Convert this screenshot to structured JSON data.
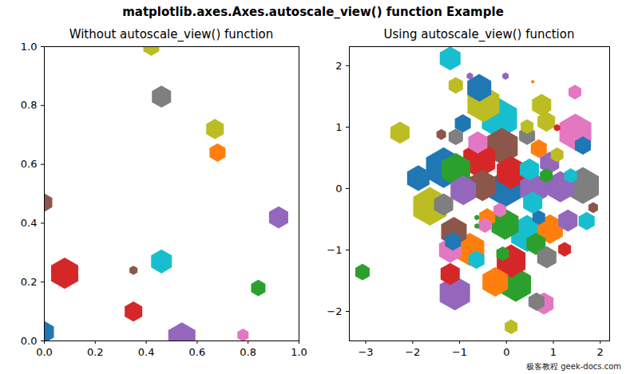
{
  "title": "matplotlib.axes.Axes.autoscale_view() function Example",
  "watermark": "极客教程 geek-docs.com",
  "chart_data": [
    {
      "type": "scatter",
      "title": "Without autoscale_view() function",
      "marker": "hexagon",
      "x": [
        0.42,
        0.46,
        0.67,
        0.68,
        0.0,
        0.92,
        0.08,
        0.46,
        0.35,
        0.84,
        0.35,
        0.0,
        0.54,
        0.78
      ],
      "y": [
        1.0,
        0.83,
        0.72,
        0.64,
        0.47,
        0.42,
        0.23,
        0.27,
        0.24,
        0.18,
        0.1,
        0.03,
        0.01,
        0.02
      ],
      "sizes": [
        207,
        298,
        250,
        207,
        207,
        298,
        597,
        349,
        52,
        167,
        250,
        298,
        597,
        101
      ],
      "colors": [
        "#bcbd22",
        "#7f7f7f",
        "#bcbd22",
        "#ff7f0e",
        "#8c564b",
        "#9467bd",
        "#d62728",
        "#17becf",
        "#8c564b",
        "#2ca02c",
        "#d62728",
        "#1f77b4",
        "#9467bd",
        "#e377c2"
      ],
      "xlim": [
        0,
        1
      ],
      "ylim": [
        0,
        1
      ],
      "xticks": [
        {
          "value": 0,
          "label": "0.0"
        },
        0.2,
        0.4,
        0.6,
        0.8,
        {
          "value": 1,
          "label": "1.0"
        }
      ],
      "yticks": [
        {
          "value": 0,
          "label": "0.0"
        },
        0.2,
        0.4,
        0.6,
        0.8,
        {
          "value": 1,
          "label": "1.0"
        }
      ]
    },
    {
      "type": "scatter",
      "title": "Using autoscale_view() function",
      "marker": "hexagon",
      "x": [
        -1.2,
        -0.78,
        -0.02,
        0.56,
        -0.58,
        -1.08,
        1.46,
        -0.49,
        -0.15,
        0.75,
        0.85,
        0.44,
        1.08,
        1.47,
        1.63,
        -0.93,
        -1.08,
        -1.39,
        -2.27,
        -0.61,
        0.44,
        0.69,
        1.08,
        -0.1,
        0.92,
        -1.34,
        -0.58,
        -1.08,
        0.1,
        -1.88,
        0.49,
        0.85,
        1.37,
        1.63,
        1.15,
        0.58,
        -0.02,
        -0.51,
        -0.92,
        -1.34,
        -1.63,
        0.56,
        1.85,
        -0.14,
        -0.41,
        -0.46,
        -0.63,
        -0.63,
        1.31,
        0.69,
        1.71,
        -0.03,
        -1.12,
        0.44,
        0.93,
        -1.14,
        0.63,
        -1.2,
        -0.78,
        -0.64,
        0.86,
        1.24,
        -0.08,
        0.1,
        -3.07,
        -1.2,
        -0.24,
        0.2,
        -1.1,
        0.8,
        0.64,
        0.1
      ],
      "y": [
        2.12,
        1.83,
        1.83,
        1.74,
        1.64,
        1.68,
        1.57,
        1.38,
        1.14,
        1.36,
        1.09,
        1.01,
        0.99,
        0.92,
        0.7,
        1.06,
        0.84,
        0.88,
        0.91,
        0.75,
        0.86,
        0.65,
        0.55,
        0.69,
        0.42,
        0.34,
        0.47,
        0.31,
        0.26,
        0.17,
        0.31,
        0.21,
        0.21,
        0.05,
        0.03,
        0.0,
        0.0,
        0.05,
        -0.03,
        -0.26,
        -0.29,
        -0.23,
        -0.31,
        -0.35,
        -0.47,
        -0.6,
        -0.47,
        -0.61,
        -0.52,
        -0.47,
        -0.53,
        -0.58,
        -0.7,
        -0.73,
        -0.66,
        -0.86,
        -0.9,
        -1.0,
        -0.99,
        -1.16,
        -1.12,
        -0.99,
        -1.06,
        -1.18,
        -1.36,
        -1.39,
        -1.52,
        -1.56,
        -1.7,
        -1.87,
        -1.84,
        -2.25
      ],
      "sizes": [
        349,
        33,
        33,
        8,
        465,
        167,
        132,
        826,
        1000,
        298,
        250,
        132,
        33,
        826,
        207,
        207,
        167,
        74,
        298,
        298,
        207,
        207,
        132,
        826,
        298,
        1000,
        826,
        669,
        669,
        405,
        298,
        132,
        132,
        826,
        597,
        597,
        826,
        597,
        529,
        298,
        911,
        298,
        74,
        132,
        207,
        132,
        19,
        19,
        298,
        132,
        207,
        597,
        529,
        826,
        529,
        207,
        298,
        405,
        669,
        207,
        298,
        132,
        132,
        669,
        167,
        298,
        529,
        746,
        746,
        298,
        207,
        132
      ],
      "colors": [
        "#17becf",
        "#9467bd",
        "#9467bd",
        "#ff7f0e",
        "#1f77b4",
        "#bcbd22",
        "#e377c2",
        "#bcbd22",
        "#17becf",
        "#bcbd22",
        "#bcbd22",
        "#bcbd22",
        "#d62728",
        "#e377c2",
        "#1f77b4",
        "#1f77b4",
        "#7f7f7f",
        "#8c564b",
        "#bcbd22",
        "#e377c2",
        "#7f7f7f",
        "#ff7f0e",
        "#bcbd22",
        "#8c564b",
        "#9467bd",
        "#1f77b4",
        "#d62728",
        "#2ca02c",
        "#d62728",
        "#1f77b4",
        "#17becf",
        "#2ca02c",
        "#17becf",
        "#7f7f7f",
        "#9467bd",
        "#9467bd",
        "#1f77b4",
        "#8c564b",
        "#9467bd",
        "#7f7f7f",
        "#bcbd22",
        "#17becf",
        "#8c564b",
        "#e377c2",
        "#ff7f0e",
        "#e377c2",
        "#2ca02c",
        "#2ca02c",
        "#9467bd",
        "#1f77b4",
        "#17becf",
        "#2ca02c",
        "#8c564b",
        "#17becf",
        "#ff7f0e",
        "#1f77b4",
        "#2ca02c",
        "#e377c2",
        "#ff7f0e",
        "#17becf",
        "#7f7f7f",
        "#d62728",
        "#2ca02c",
        "#d62728",
        "#2ca02c",
        "#d62728",
        "#ff7f0e",
        "#2ca02c",
        "#9467bd",
        "#e377c2",
        "#7f7f7f",
        "#bcbd22"
      ],
      "xlim": [
        -3.35,
        2.2
      ],
      "ylim": [
        -2.48,
        2.31
      ],
      "xticks": [
        {
          "value": -3,
          "label": "−3"
        },
        {
          "value": -2,
          "label": "−2"
        },
        {
          "value": -1,
          "label": "−1"
        },
        0,
        1,
        2
      ],
      "yticks": [
        {
          "value": -2,
          "label": "−2"
        },
        {
          "value": -1,
          "label": "−1"
        },
        0,
        1,
        2
      ]
    }
  ]
}
